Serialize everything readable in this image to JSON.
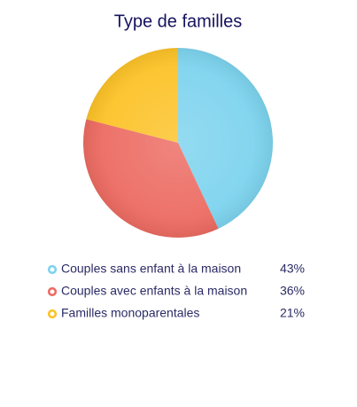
{
  "chart_data": {
    "type": "pie",
    "title": "Type de familles",
    "categories": [
      "Couples sans enfant à la maison",
      "Couples avec enfants à la maison",
      "Familles monoparentales"
    ],
    "values": [
      43,
      36,
      21
    ],
    "value_labels": [
      "43%",
      "36%",
      "21%"
    ],
    "colors": [
      "#7dd3ee",
      "#ec6b62",
      "#fcc227"
    ]
  }
}
